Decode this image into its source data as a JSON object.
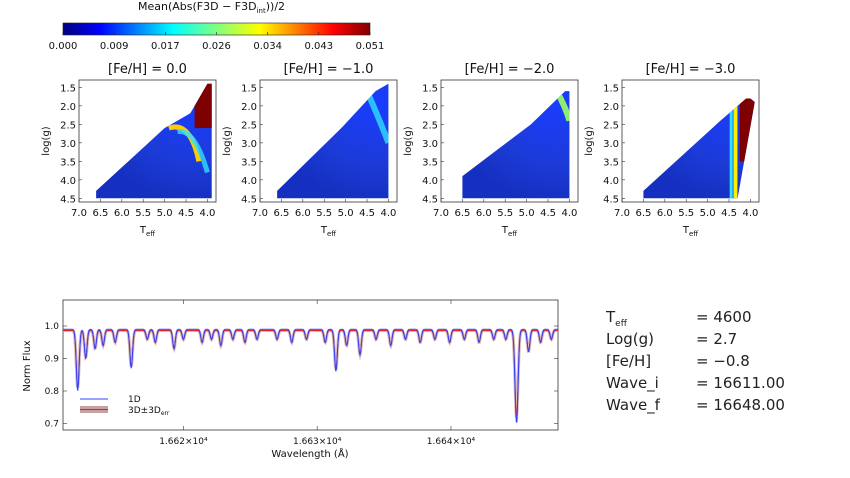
{
  "colorbar": {
    "title_main": "Mean(Abs(F3D − F3D",
    "title_sub": "int",
    "title_tail": "))/2",
    "ticks": [
      "0.000",
      "0.009",
      "0.017",
      "0.026",
      "0.034",
      "0.043",
      "0.051"
    ],
    "vmin": 0.0,
    "vmax": 0.051
  },
  "panels": [
    {
      "title": "[Fe/H] =   0.0"
    },
    {
      "title": "[Fe/H] = −1.0"
    },
    {
      "title": "[Fe/H] = −2.0"
    },
    {
      "title": "[Fe/H] = −3.0"
    }
  ],
  "panel_axes": {
    "xlabel_main": "T",
    "xlabel_sub": "eff",
    "ylabel": "log(g)",
    "xticks": [
      "7.0",
      "6.5",
      "6.0",
      "5.5",
      "5.0",
      "4.5",
      "4.0"
    ],
    "yticks": [
      "1.5",
      "2.0",
      "2.5",
      "3.0",
      "3.5",
      "4.0",
      "4.5"
    ]
  },
  "chart_data": [
    {
      "type": "heatmap",
      "title": "[Fe/H] = 0.0",
      "xlabel": "Teff",
      "ylabel": "log(g)",
      "xlim": [
        7.0,
        3.8
      ],
      "ylim": [
        4.5,
        1.3
      ],
      "notes": "error map over Teff/logg grid; mostly low (blue), high values (red) at Teff < 4.4, logg < 2.6"
    },
    {
      "type": "heatmap",
      "title": "[Fe/H] = -1.0",
      "xlabel": "Teff",
      "ylabel": "log(g)",
      "xlim": [
        7.0,
        3.8
      ],
      "ylim": [
        4.5,
        1.3
      ]
    },
    {
      "type": "heatmap",
      "title": "[Fe/H] = -2.0",
      "xlabel": "Teff",
      "ylabel": "log(g)",
      "xlim": [
        7.0,
        3.8
      ],
      "ylim": [
        4.5,
        1.3
      ]
    },
    {
      "type": "heatmap",
      "title": "[Fe/H] = -3.0",
      "xlabel": "Teff",
      "ylabel": "log(g)",
      "xlim": [
        7.0,
        3.8
      ],
      "ylim": [
        4.5,
        1.3
      ]
    },
    {
      "type": "line",
      "title": "",
      "xlabel": "Wavelength (Å)",
      "ylabel": "Norm Flux",
      "xlim": [
        16611.0,
        16648.0
      ],
      "ylim": [
        0.68,
        1.08
      ],
      "xticks": [
        "1.662×10⁴",
        "1.663×10⁴",
        "1.664×10⁴"
      ],
      "xtick_values": [
        16620,
        16630,
        16640
      ],
      "yticks": [
        "0.7",
        "0.8",
        "0.9",
        "1.0"
      ],
      "series": [
        {
          "name": "1D",
          "color": "#3344ff"
        },
        {
          "name": "3D±3D",
          "color": "#e0202a"
        }
      ],
      "lines": [
        {
          "x": 16612.1,
          "depth": 0.19
        },
        {
          "x": 16612.7,
          "depth": 0.09
        },
        {
          "x": 16613.4,
          "depth": 0.06
        },
        {
          "x": 16614.0,
          "depth": 0.05
        },
        {
          "x": 16614.9,
          "depth": 0.04
        },
        {
          "x": 16616.1,
          "depth": 0.12
        },
        {
          "x": 16617.3,
          "depth": 0.03
        },
        {
          "x": 16617.9,
          "depth": 0.04
        },
        {
          "x": 16619.3,
          "depth": 0.06
        },
        {
          "x": 16620.0,
          "depth": 0.03
        },
        {
          "x": 16621.4,
          "depth": 0.04
        },
        {
          "x": 16622.1,
          "depth": 0.03
        },
        {
          "x": 16622.8,
          "depth": 0.05
        },
        {
          "x": 16623.7,
          "depth": 0.03
        },
        {
          "x": 16624.6,
          "depth": 0.04
        },
        {
          "x": 16625.5,
          "depth": 0.03
        },
        {
          "x": 16627.0,
          "depth": 0.03
        },
        {
          "x": 16628.1,
          "depth": 0.04
        },
        {
          "x": 16629.2,
          "depth": 0.03
        },
        {
          "x": 16630.6,
          "depth": 0.04
        },
        {
          "x": 16631.4,
          "depth": 0.13
        },
        {
          "x": 16632.2,
          "depth": 0.05
        },
        {
          "x": 16633.2,
          "depth": 0.08
        },
        {
          "x": 16634.4,
          "depth": 0.03
        },
        {
          "x": 16635.5,
          "depth": 0.05
        },
        {
          "x": 16636.6,
          "depth": 0.03
        },
        {
          "x": 16637.7,
          "depth": 0.04
        },
        {
          "x": 16638.8,
          "depth": 0.03
        },
        {
          "x": 16639.9,
          "depth": 0.04
        },
        {
          "x": 16641.0,
          "depth": 0.03
        },
        {
          "x": 16642.1,
          "depth": 0.04
        },
        {
          "x": 16643.2,
          "depth": 0.03
        },
        {
          "x": 16644.1,
          "depth": 0.03
        },
        {
          "x": 16644.9,
          "depth": 0.29
        },
        {
          "x": 16645.8,
          "depth": 0.07
        },
        {
          "x": 16646.7,
          "depth": 0.04
        },
        {
          "x": 16647.5,
          "depth": 0.03
        }
      ],
      "continuum": 0.99
    }
  ],
  "spectrum_axes": {
    "xlabel": "Wavelength (Å)",
    "ylabel": "Norm Flux",
    "legend_1d": "1D",
    "legend_3d_main": "3D±3D",
    "legend_3d_sub": "err"
  },
  "params": [
    {
      "key_main": "T",
      "key_sub": "eff",
      "value": "= 4600"
    },
    {
      "key_main": "Log(g)",
      "key_sub": "",
      "value": "= 2.7"
    },
    {
      "key_main": "[Fe/H]",
      "key_sub": "",
      "value": "= −0.8"
    },
    {
      "key_main": "Wave_i",
      "key_sub": "",
      "value": "= 16611.00"
    },
    {
      "key_main": "Wave_f",
      "key_sub": "",
      "value": "= 16648.00"
    }
  ],
  "colors": {
    "blue_1d": "#3344ff",
    "red_3d": "#e0202a",
    "band": "#c9a0a0"
  }
}
